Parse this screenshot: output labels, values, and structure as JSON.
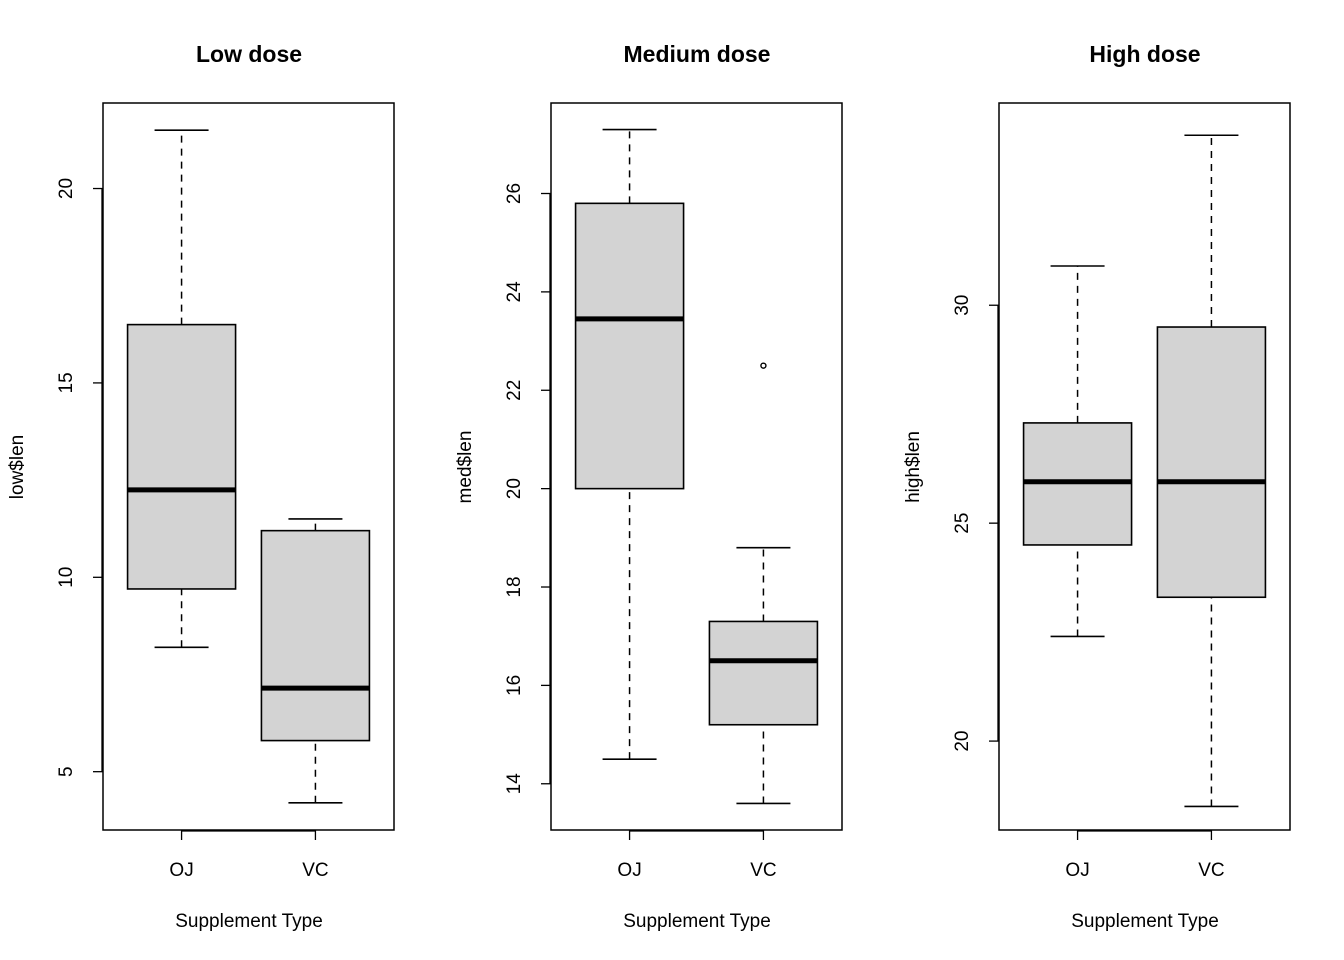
{
  "chart_data": [
    {
      "type": "box",
      "title": "Low dose",
      "xlabel": "Supplement Type",
      "ylabel": "low$len",
      "categories": [
        "OJ",
        "VC"
      ],
      "ylim": [
        3.5,
        22.2
      ],
      "yticks": [
        5,
        10,
        15,
        20
      ],
      "boxes": [
        {
          "name": "OJ",
          "whisker_low": 8.2,
          "q1": 9.7,
          "median": 12.25,
          "q3": 16.5,
          "whisker_high": 21.5,
          "outliers": []
        },
        {
          "name": "VC",
          "whisker_low": 4.2,
          "q1": 5.8,
          "median": 7.15,
          "q3": 11.2,
          "whisker_high": 11.5,
          "outliers": []
        }
      ]
    },
    {
      "type": "box",
      "title": "Medium dose",
      "xlabel": "Supplement Type",
      "ylabel": "med$len",
      "categories": [
        "OJ",
        "VC"
      ],
      "ylim": [
        13.06,
        27.84
      ],
      "yticks": [
        14,
        16,
        18,
        20,
        22,
        24,
        26
      ],
      "boxes": [
        {
          "name": "OJ",
          "whisker_low": 14.5,
          "q1": 20.0,
          "median": 23.45,
          "q3": 25.8,
          "whisker_high": 27.3,
          "outliers": []
        },
        {
          "name": "VC",
          "whisker_low": 13.6,
          "q1": 15.2,
          "median": 16.5,
          "q3": 17.3,
          "whisker_high": 18.8,
          "outliers": [
            22.5
          ]
        }
      ]
    },
    {
      "type": "box",
      "title": "High dose",
      "xlabel": "Supplement Type",
      "ylabel": "high$len",
      "categories": [
        "OJ",
        "VC"
      ],
      "ylim": [
        17.96,
        34.64
      ],
      "yticks": [
        20,
        25,
        30
      ],
      "boxes": [
        {
          "name": "OJ",
          "whisker_low": 22.4,
          "q1": 24.5,
          "median": 25.95,
          "q3": 27.3,
          "whisker_high": 30.9,
          "outliers": []
        },
        {
          "name": "VC",
          "whisker_low": 18.5,
          "q1": 23.3,
          "median": 25.95,
          "q3": 29.5,
          "whisker_high": 33.9,
          "outliers": []
        }
      ]
    }
  ],
  "style": {
    "box_fill": "#d3d3d3",
    "stroke": "#000000"
  }
}
